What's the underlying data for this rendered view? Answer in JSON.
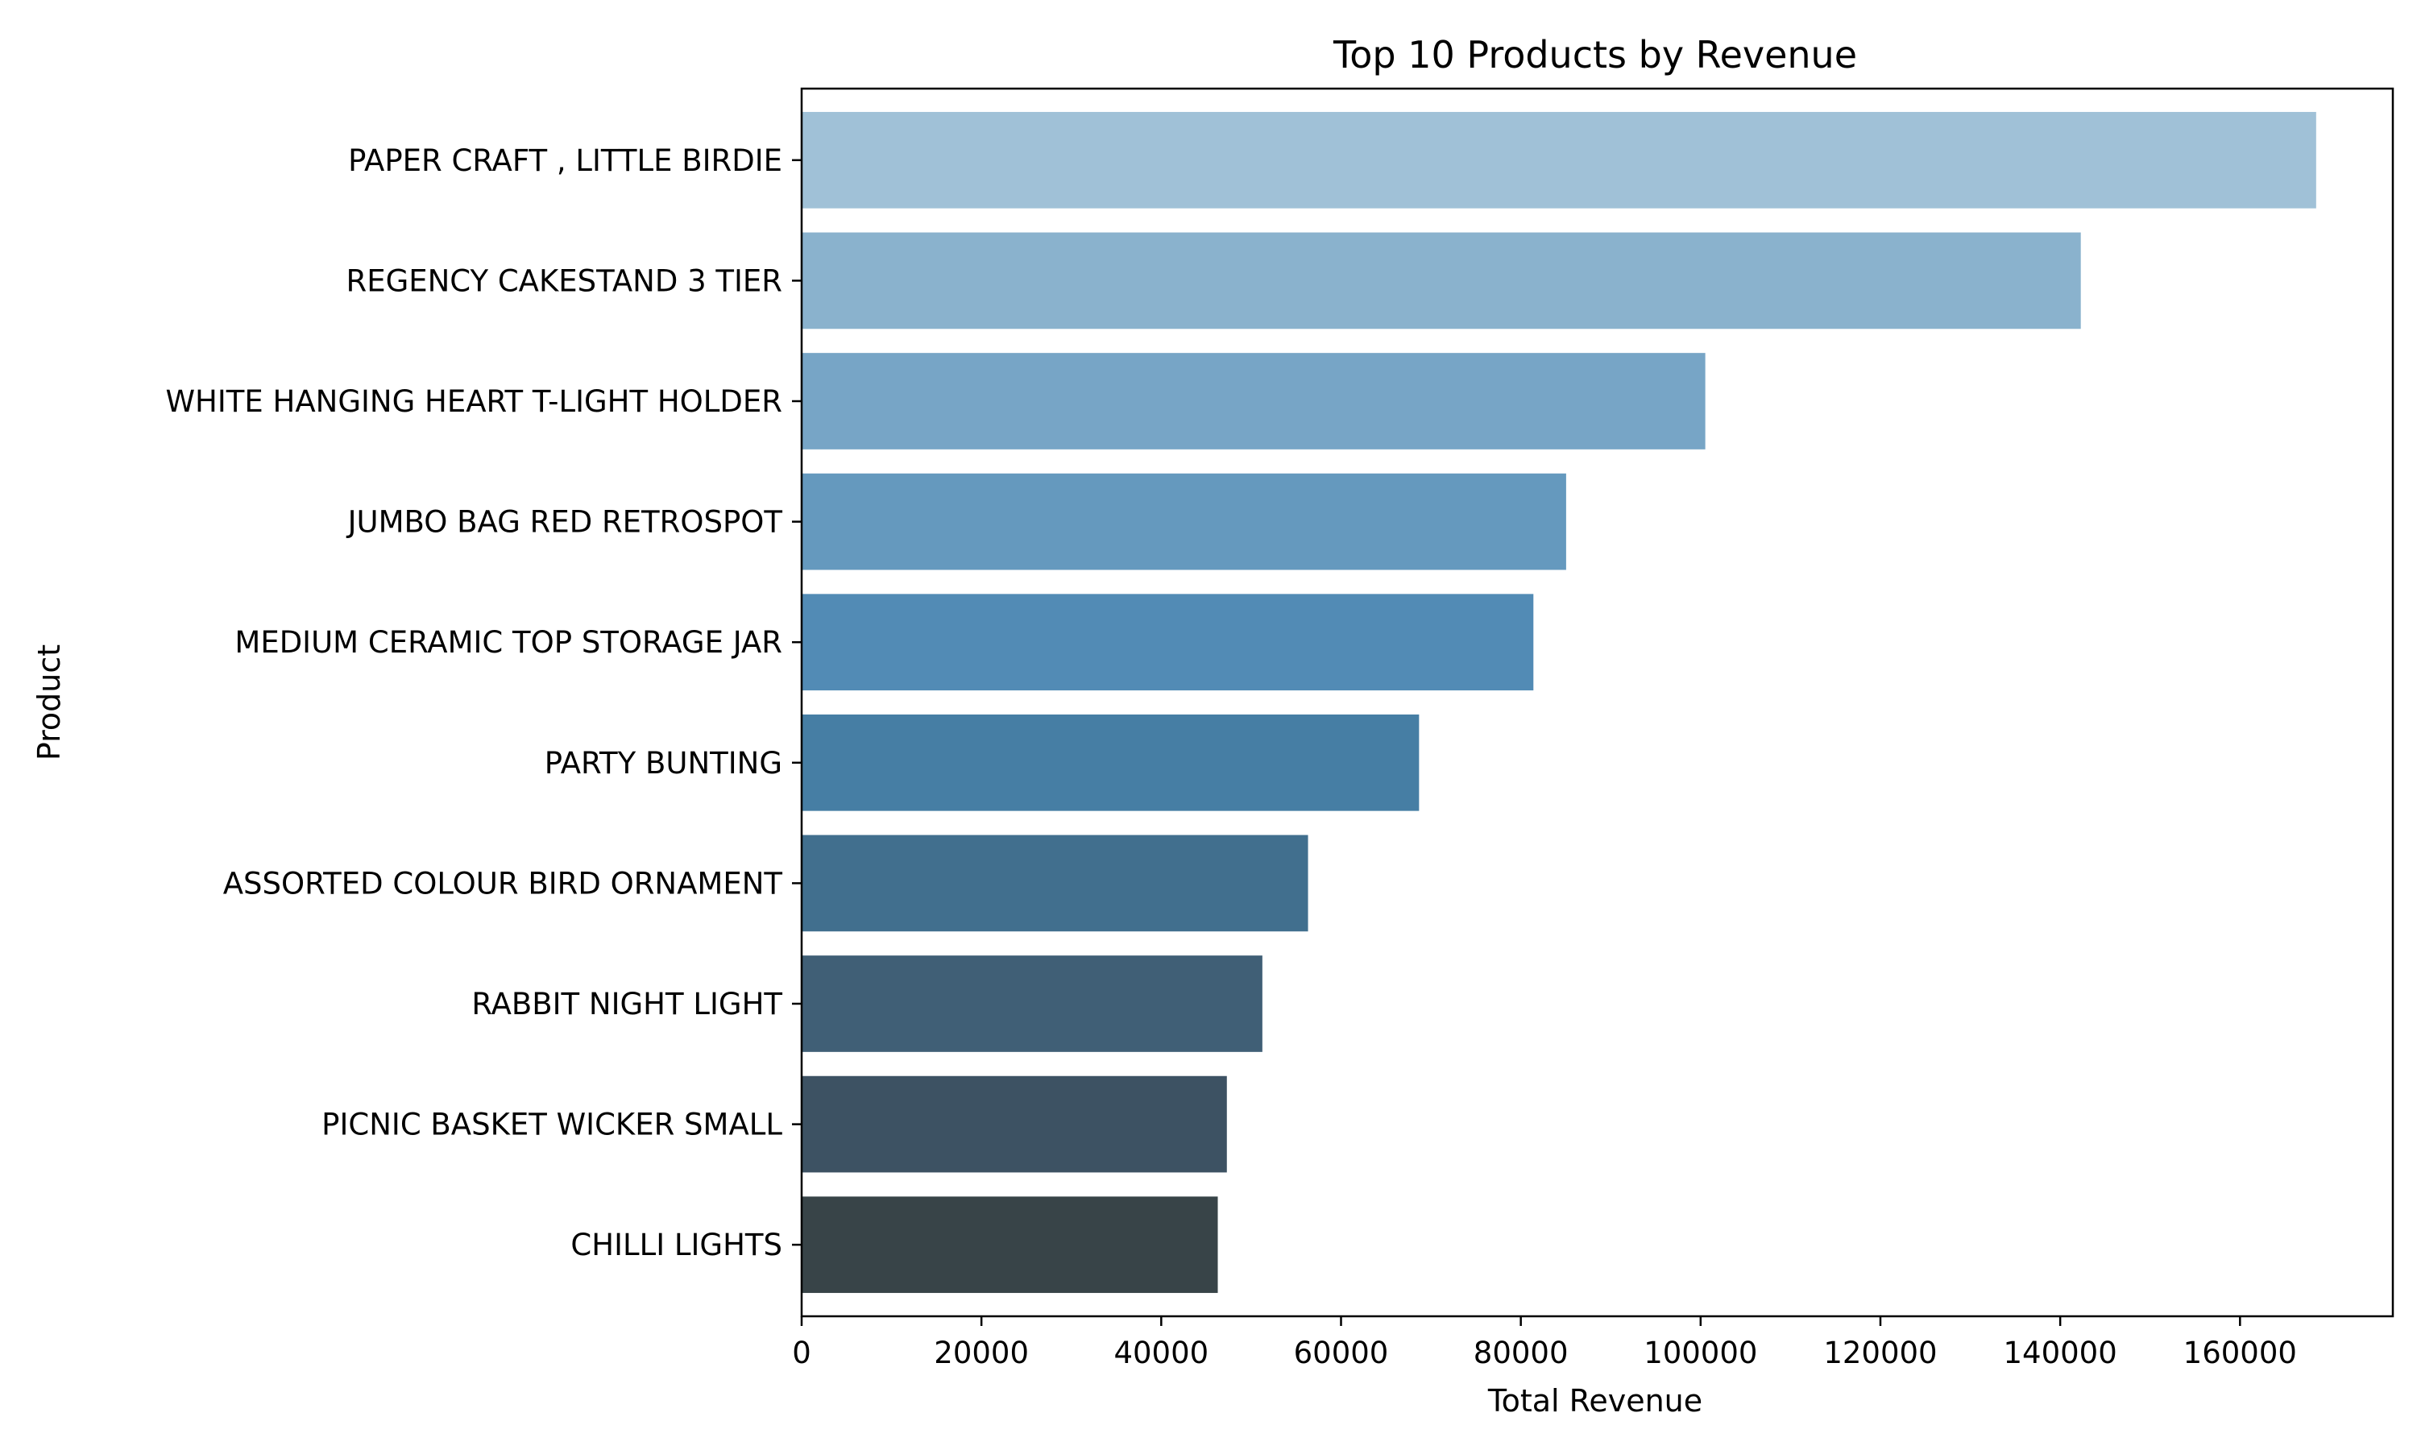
{
  "chart_data": {
    "type": "bar",
    "orientation": "horizontal",
    "title": "Top 10 Products by Revenue",
    "xlabel": "Total Revenue",
    "ylabel": "Product",
    "xlim": [
      0,
      177000
    ],
    "xticks": [
      0,
      20000,
      40000,
      60000,
      80000,
      100000,
      120000,
      140000,
      160000
    ],
    "grid": false,
    "categories": [
      "PAPER CRAFT , LITTLE BIRDIE",
      "REGENCY CAKESTAND 3 TIER",
      "WHITE HANGING HEART T-LIGHT HOLDER",
      "JUMBO BAG RED RETROSPOT",
      "MEDIUM CERAMIC TOP STORAGE JAR",
      "PARTY BUNTING",
      "ASSORTED COLOUR BIRD ORNAMENT",
      "RABBIT NIGHT LIGHT",
      "PICNIC BASKET WICKER SMALL",
      "CHILLI LIGHTS"
    ],
    "values": [
      168470,
      142290,
      100520,
      85040,
      81400,
      68680,
      56330,
      51250,
      47300,
      46290
    ],
    "colors": [
      "#a0c1d7",
      "#8ab2cd",
      "#77a5c6",
      "#6599be",
      "#528bb5",
      "#467ea4",
      "#416f8e",
      "#405f76",
      "#3d5263",
      "#384448"
    ]
  }
}
